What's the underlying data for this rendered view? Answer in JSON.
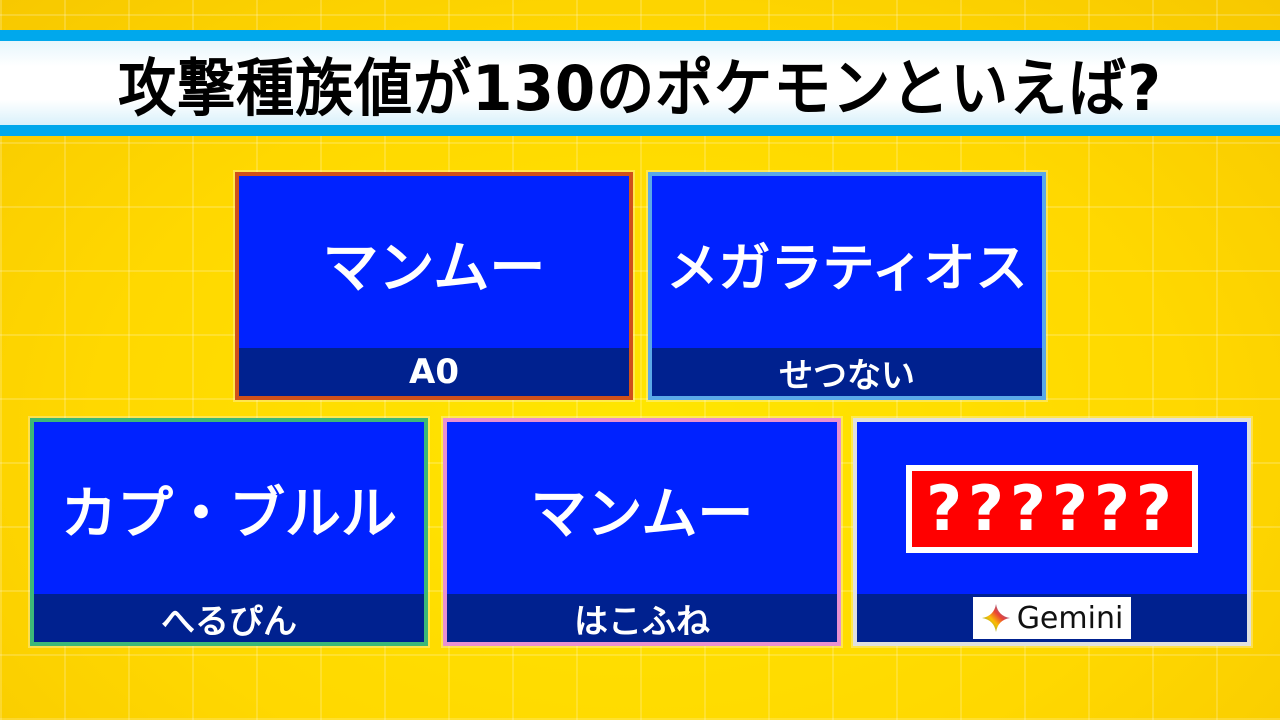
{
  "title": "攻撃種族値が130のポケモンといえば?",
  "cards": [
    {
      "answer": "マンムー",
      "player": "A0",
      "border": "#d0501a"
    },
    {
      "answer": "メガラティオス",
      "player": "せつない",
      "border": "#5aa8e8"
    },
    {
      "answer": "カプ・ブルル",
      "player": "へるぴん",
      "border": "#3cb878"
    },
    {
      "answer": "マンムー",
      "player": "はこふね",
      "border": "#e890d0"
    },
    {
      "answer": "??????",
      "player": "Gemini",
      "border": "#e0e0e0",
      "icon": "gemini-sparkle-icon"
    }
  ]
}
